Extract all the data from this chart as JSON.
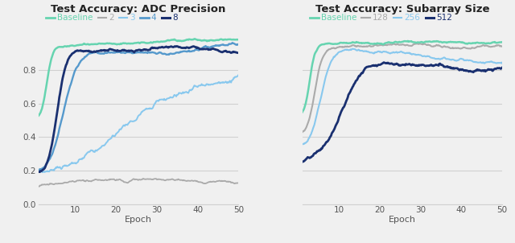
{
  "title1": "Test Accuracy: ADC Precision",
  "title2": "Test Accuracy: Subarray Size",
  "xlabel": "Epoch",
  "colors": {
    "baseline": "#66d4b0",
    "adc2": "#aaaaaa",
    "adc3": "#88c8ee",
    "adc4": "#5599cc",
    "adc8": "#1a3070",
    "sub128": "#aaaaaa",
    "sub256": "#88c8ee",
    "sub512": "#1a3070"
  },
  "legend1_labels": [
    "Baseline",
    "2",
    "3",
    "4",
    "8"
  ],
  "legend1_colors": [
    "#66d4b0",
    "#aaaaaa",
    "#88c8ee",
    "#5599cc",
    "#1a3070"
  ],
  "legend1_lws": [
    2.0,
    1.5,
    1.5,
    2.0,
    2.2
  ],
  "legend2_labels": [
    "Baseline",
    "128",
    "256",
    "512"
  ],
  "legend2_colors": [
    "#66d4b0",
    "#aaaaaa",
    "#88c8ee",
    "#1a3070"
  ],
  "legend2_lws": [
    2.0,
    1.5,
    1.5,
    2.2
  ],
  "ylim": [
    0,
    1.0
  ],
  "yticks": [
    0,
    0.2,
    0.4,
    0.6,
    0.8
  ],
  "xticks": [
    10,
    20,
    30,
    40,
    50
  ],
  "xlim": [
    1,
    50
  ],
  "bg_color": "#f0f0f0",
  "grid_color": "#d0d0d0"
}
